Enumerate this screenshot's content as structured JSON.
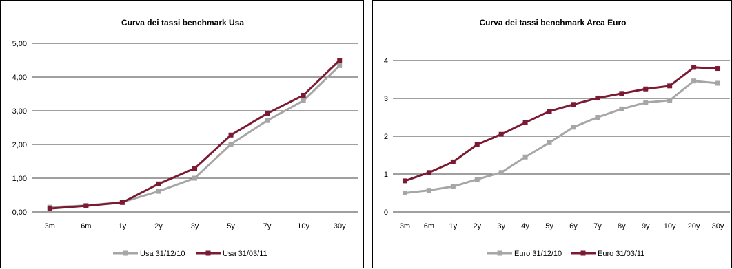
{
  "chart_data": [
    {
      "type": "line",
      "title": "Curva dei tassi benchmark Usa",
      "xlabel": "",
      "ylabel": "",
      "categories": [
        "3m",
        "6m",
        "1y",
        "2y",
        "3y",
        "5y",
        "7y",
        "10y",
        "30y"
      ],
      "ylim": [
        0,
        5
      ],
      "yticks": [
        0,
        1,
        2,
        3,
        4,
        5
      ],
      "ytick_labels": [
        "0,00",
        "1,00",
        "2,00",
        "3,00",
        "4,00",
        "5,00"
      ],
      "grid": true,
      "legend_position": "bottom",
      "series": [
        {
          "name": "Usa 31/12/10",
          "color": "#a6a6a6",
          "values": [
            0.14,
            0.19,
            0.29,
            0.61,
            1.0,
            2.01,
            2.71,
            3.3,
            4.34
          ]
        },
        {
          "name": "Usa 31/03/11",
          "color": "#7b1a33",
          "values": [
            0.1,
            0.18,
            0.28,
            0.83,
            1.29,
            2.28,
            2.92,
            3.46,
            4.5
          ]
        }
      ]
    },
    {
      "type": "line",
      "title": "Curva dei tassi benchmark Area Euro",
      "xlabel": "",
      "ylabel": "",
      "categories": [
        "3m",
        "6m",
        "1y",
        "2y",
        "3y",
        "4y",
        "5y",
        "6y",
        "7y",
        "8y",
        "9y",
        "10y",
        "20y",
        "30y"
      ],
      "ylim": [
        0,
        4
      ],
      "yticks": [
        0,
        1,
        2,
        3,
        4
      ],
      "ytick_labels": [
        "0",
        "1",
        "2",
        "3",
        "4"
      ],
      "grid": true,
      "legend_position": "bottom",
      "series": [
        {
          "name": "Euro 31/12/10",
          "color": "#a6a6a6",
          "values": [
            0.5,
            0.57,
            0.67,
            0.86,
            1.04,
            1.45,
            1.83,
            2.24,
            2.5,
            2.72,
            2.89,
            2.95,
            3.46,
            3.4
          ]
        },
        {
          "name": "Euro 31/03/11",
          "color": "#7b1a33",
          "values": [
            0.82,
            1.04,
            1.32,
            1.78,
            2.05,
            2.36,
            2.66,
            2.84,
            3.01,
            3.13,
            3.25,
            3.33,
            3.82,
            3.79
          ]
        }
      ]
    }
  ]
}
